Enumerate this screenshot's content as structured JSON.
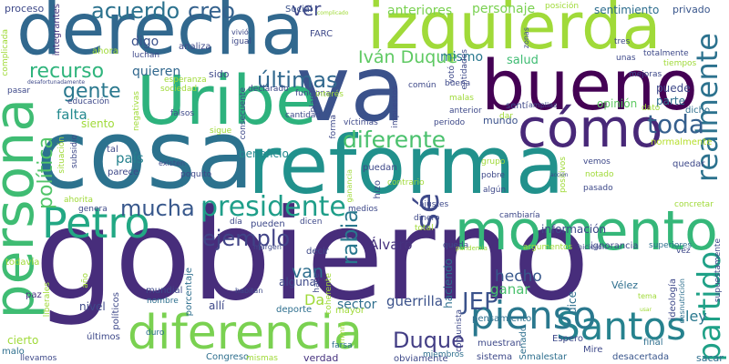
{
  "words": [
    {
      "text": "gobierno",
      "color": "#472d7b"
    },
    {
      "text": "cosa",
      "color": "#2c728e"
    },
    {
      "text": "reforma",
      "color": "#21918c"
    },
    {
      "text": "derecha",
      "color": "#31688e"
    },
    {
      "text": "va",
      "color": "#3b528b"
    },
    {
      "text": "izquierda",
      "color": "#a0da39"
    },
    {
      "text": "bueno",
      "color": "#440154"
    },
    {
      "text": "Uribe",
      "color": "#2db27d"
    },
    {
      "text": "persona",
      "color": "#3fbc73"
    },
    {
      "text": "cómo",
      "color": "#482878"
    },
    {
      "text": "momento",
      "color": "#35b779"
    },
    {
      "text": "diferencia",
      "color": "#7ad151"
    },
    {
      "text": "Petro",
      "color": "#22a884"
    },
    {
      "text": "Santos",
      "color": "#26828e"
    },
    {
      "text": "pienso",
      "color": "#2a788e"
    },
    {
      "text": "partido",
      "color": "#1fa187"
    },
    {
      "text": "presidente",
      "color": "#1f9e89"
    },
    {
      "text": "sé",
      "color": "#3e4989"
    },
    {
      "text": "realmente",
      "color": "#2c728e"
    },
    {
      "text": "toda",
      "color": "#355f8d"
    },
    {
      "text": "diferente",
      "color": "#4ac16d"
    },
    {
      "text": "mucha",
      "color": "#38588c"
    },
    {
      "text": "ejemplo",
      "color": "#414487"
    },
    {
      "text": "política",
      "color": "#52c569"
    },
    {
      "text": "rabia",
      "color": "#2a788e"
    },
    {
      "text": "JEP",
      "color": "#3b528b"
    },
    {
      "text": "Duque",
      "color": "#433e85"
    },
    {
      "text": "últimas",
      "color": "#31688e"
    },
    {
      "text": "gente",
      "color": "#2a788e"
    },
    {
      "text": "acuerdo",
      "color": "#2c728e"
    },
    {
      "text": "creo",
      "color": "#34618d"
    },
    {
      "text": "recurso",
      "color": "#2fb47c"
    },
    {
      "text": "Iván Duque",
      "color": "#5ec962"
    },
    {
      "text": "ver",
      "color": "#3e4989"
    },
    {
      "text": "van",
      "color": "#2e6f8e"
    },
    {
      "text": "hecho",
      "color": "#38588c"
    },
    {
      "text": "ganar",
      "color": "#4ac16d"
    },
    {
      "text": "guerrilla",
      "color": "#3b528b"
    },
    {
      "text": "sector",
      "color": "#2e6e8e"
    },
    {
      "text": "Da",
      "color": "#a0da39"
    },
    {
      "text": "país",
      "color": "#26828e"
    },
    {
      "text": "falta",
      "color": "#23898e"
    },
    {
      "text": "quieren",
      "color": "#31688e"
    },
    {
      "text": "digo",
      "color": "#3b528b"
    },
    {
      "text": "mismo",
      "color": "#2a788e"
    },
    {
      "text": "salud",
      "color": "#3fbc73"
    },
    {
      "text": "anteriores",
      "color": "#7ad151"
    },
    {
      "text": "personaje",
      "color": "#7ad151"
    },
    {
      "text": "sentimiento",
      "color": "#2e6e8e"
    },
    {
      "text": "privado",
      "color": "#39568c"
    },
    {
      "text": "proceso",
      "color": "#3e4989"
    },
    {
      "text": "integrantes",
      "color": "#46327e"
    },
    {
      "text": "Social",
      "color": "#3b528b"
    },
    {
      "text": "FARC",
      "color": "#3e4989"
    },
    {
      "text": "mundo",
      "color": "#3b528b"
    },
    {
      "text": "dicho",
      "color": "#2e6f8e"
    },
    {
      "text": "beneficio",
      "color": "#23898e"
    },
    {
      "text": "información",
      "color": "#3e4989"
    },
    {
      "text": "puede",
      "color": "#3e4989"
    },
    {
      "text": "parte",
      "color": "#2e6e8e"
    },
    {
      "text": "opinión",
      "color": "#5ec962"
    },
    {
      "text": "normalmente",
      "color": "#b5de2b"
    },
    {
      "text": "Álvaro",
      "color": "#46327e"
    },
    {
      "text": "haciendo",
      "color": "#2e6f8e"
    },
    {
      "text": "dice",
      "color": "#2e6f8e"
    },
    {
      "text": "Vélez",
      "color": "#2e6f8e"
    },
    {
      "text": "ley",
      "color": "#2a788e"
    },
    {
      "text": "verdad",
      "color": "#46327e"
    },
    {
      "text": "Congreso",
      "color": "#2e6f8e"
    },
    {
      "text": "sistema",
      "color": "#3e4989"
    },
    {
      "text": "malestar",
      "color": "#2e6f8e"
    },
    {
      "text": "desacertada",
      "color": "#39568c"
    },
    {
      "text": "sacar",
      "color": "#2e6f8e"
    },
    {
      "text": "obviamente",
      "color": "#3e4989"
    },
    {
      "text": "llevamos",
      "color": "#3e4989"
    },
    {
      "text": "cierto",
      "color": "#a0da39"
    },
    {
      "text": "malo",
      "color": "#2e6f8e"
    },
    {
      "text": "nivel",
      "color": "#3e4989"
    },
    {
      "text": "paz",
      "color": "#46327e"
    },
    {
      "text": "todavía",
      "color": "#a0da39"
    },
    {
      "text": "mundial",
      "color": "#3e4989"
    },
    {
      "text": "nombre",
      "color": "#2e6f8e"
    },
    {
      "text": "políticos",
      "color": "#3e4989"
    },
    {
      "text": "porcentaje",
      "color": "#2e6f8e"
    },
    {
      "text": "allí",
      "color": "#3e4989"
    },
    {
      "text": "alguna",
      "color": "#3e4989"
    },
    {
      "text": "deporte",
      "color": "#2e6f8e"
    },
    {
      "text": "mayor",
      "color": "#a0da39"
    },
    {
      "text": "últimos",
      "color": "#3e4989"
    },
    {
      "text": "duro",
      "color": "#2e6f8e"
    },
    {
      "text": "mismas",
      "color": "#a0da39"
    },
    {
      "text": "farsa",
      "color": "#2e6f8e"
    },
    {
      "text": "miembros",
      "color": "#2e6f8e"
    },
    {
      "text": "muestran",
      "color": "#3e4989"
    },
    {
      "text": "Senado",
      "color": "#2e6f8e"
    },
    {
      "text": "Espero",
      "color": "#3e4989"
    },
    {
      "text": "pensamiento",
      "color": "#2e6f8e"
    },
    {
      "text": "Mire",
      "color": "#3e4989"
    },
    {
      "text": "final",
      "color": "#2e6f8e"
    },
    {
      "text": "ideología",
      "color": "#3e4989"
    },
    {
      "text": "desnutrición",
      "color": "#2e6f8e"
    },
    {
      "text": "supuestamente",
      "color": "#3e4989"
    },
    {
      "text": "ignorancia",
      "color": "#3e4989"
    },
    {
      "text": "superiores",
      "color": "#2e6f8e"
    },
    {
      "text": "hicieron",
      "color": "#3e4989"
    },
    {
      "text": "argumentos",
      "color": "#a0da39"
    },
    {
      "text": "queda",
      "color": "#3e4989"
    },
    {
      "text": "decir",
      "color": "#3e4989"
    },
    {
      "text": "pueden",
      "color": "#3e4989"
    },
    {
      "text": "dicen",
      "color": "#3e4989"
    },
    {
      "text": "medios",
      "color": "#3e4989"
    },
    {
      "text": "ajustes",
      "color": "#3e4989"
    },
    {
      "text": "dinero",
      "color": "#3e4989"
    },
    {
      "text": "total",
      "color": "#a0da39"
    },
    {
      "text": "cambiaría",
      "color": "#3e4989"
    },
    {
      "text": "concretar",
      "color": "#a0da39"
    },
    {
      "text": "pasado",
      "color": "#3e4989"
    },
    {
      "text": "vemos",
      "color": "#3e4989"
    },
    {
      "text": "quedar",
      "color": "#3e4989"
    },
    {
      "text": "notado",
      "color": "#a0da39"
    },
    {
      "text": "algún",
      "color": "#3e4989"
    },
    {
      "text": "contrario",
      "color": "#a0da39"
    },
    {
      "text": "pobre",
      "color": "#3e4989"
    },
    {
      "text": "grupo",
      "color": "#a0da39"
    },
    {
      "text": "puedan",
      "color": "#3e4989"
    },
    {
      "text": "hizo",
      "color": "#3e4989"
    },
    {
      "text": "dar",
      "color": "#a0da39"
    },
    {
      "text": "anterior",
      "color": "#3e4989"
    },
    {
      "text": "periodo",
      "color": "#3e4989"
    },
    {
      "text": "víctimas",
      "color": "#3e4989"
    },
    {
      "text": "forma",
      "color": "#3e4989"
    },
    {
      "text": "cantidad",
      "color": "#3e4989"
    },
    {
      "text": "funciona",
      "color": "#3e4989"
    },
    {
      "text": "declarado",
      "color": "#3e4989"
    },
    {
      "text": "sociedad",
      "color": "#a0da39"
    },
    {
      "text": "falsos",
      "color": "#3e4989"
    },
    {
      "text": "sigue",
      "color": "#a0da39"
    },
    {
      "text": "siento",
      "color": "#a0da39"
    },
    {
      "text": "tal",
      "color": "#3e4989"
    },
    {
      "text": "parece",
      "color": "#3e4989"
    },
    {
      "text": "poquito",
      "color": "#3e4989"
    },
    {
      "text": "existen",
      "color": "#3e4989"
    },
    {
      "text": "genera",
      "color": "#3e4989"
    },
    {
      "text": "ahorita",
      "color": "#a0da39"
    },
    {
      "text": "situación",
      "color": "#a0da39"
    },
    {
      "text": "subsidio",
      "color": "#3e4989"
    },
    {
      "text": "educación",
      "color": "#3e4989"
    },
    {
      "text": "luchan",
      "color": "#3e4989"
    },
    {
      "text": "ahora",
      "color": "#a0da39"
    },
    {
      "text": "analiza",
      "color": "#3e4989"
    },
    {
      "text": "igual",
      "color": "#3e4989"
    },
    {
      "text": "vivió",
      "color": "#3e4989"
    },
    {
      "text": "sido",
      "color": "#3e4989"
    },
    {
      "text": "esperanza",
      "color": "#a0da39"
    },
    {
      "text": "negativas",
      "color": "#a0da39"
    },
    {
      "text": "complicada",
      "color": "#a0da39"
    },
    {
      "text": "desafortunadamente",
      "color": "#3e4989"
    },
    {
      "text": "pasar",
      "color": "#3e4989"
    },
    {
      "text": "complicado",
      "color": "#a0da39"
    },
    {
      "text": "común",
      "color": "#3e4989"
    },
    {
      "text": "malas",
      "color": "#a0da39"
    },
    {
      "text": "votó",
      "color": "#3e4989"
    },
    {
      "text": "entidades",
      "color": "#3e4989"
    },
    {
      "text": "impuestos",
      "color": "#3e4989"
    },
    {
      "text": "buena",
      "color": "#3e4989"
    },
    {
      "text": "sentí",
      "color": "#3e4989"
    },
    {
      "text": "amplias",
      "color": "#3e4989"
    },
    {
      "text": "zonas",
      "color": "#3e4989"
    },
    {
      "text": "positivos",
      "color": "#a0da39"
    },
    {
      "text": "acción",
      "color": "#3e4989"
    },
    {
      "text": "posición",
      "color": "#a0da39"
    },
    {
      "text": "tres",
      "color": "#3e4989"
    },
    {
      "text": "totalmente",
      "color": "#3e4989"
    },
    {
      "text": "tiempos",
      "color": "#a0da39"
    },
    {
      "text": "mejoras",
      "color": "#3e4989"
    },
    {
      "text": "unas",
      "color": "#3e4989"
    },
    {
      "text": "dato",
      "color": "#a0da39"
    },
    {
      "text": "interés",
      "color": "#a0da39"
    },
    {
      "text": "plan",
      "color": "#3e4989"
    },
    {
      "text": "consecuente",
      "color": "#3e4989"
    },
    {
      "text": "día",
      "color": "#3e4989"
    },
    {
      "text": "margen",
      "color": "#3e4989"
    },
    {
      "text": "pandemia",
      "color": "#a0da39"
    },
    {
      "text": "coherente",
      "color": "#a0da39"
    },
    {
      "text": "comunista",
      "color": "#3e4989"
    },
    {
      "text": "hace",
      "color": "#3e4989"
    },
    {
      "text": "habitan",
      "color": "#3e4989"
    },
    {
      "text": "año",
      "color": "#a0da39"
    },
    {
      "text": "liberales",
      "color": "#a0da39"
    },
    {
      "text": "tema",
      "color": "#a0da39"
    },
    {
      "text": "mmm",
      "color": "#a0da39"
    },
    {
      "text": "ganancia",
      "color": "#a0da39"
    },
    {
      "text": "vez",
      "color": "#3e4989"
    },
    {
      "text": "usar",
      "color": "#a0da39"
    }
  ]
}
